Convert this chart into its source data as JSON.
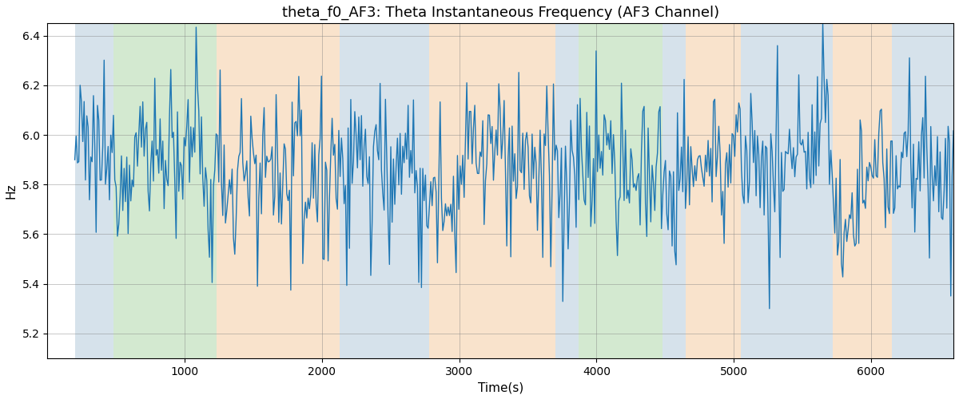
{
  "title": "theta_f0_AF3: Theta Instantaneous Frequency (AF3 Channel)",
  "xlabel": "Time(s)",
  "ylabel": "Hz",
  "xlim": [
    0,
    6600
  ],
  "ylim": [
    5.1,
    6.45
  ],
  "line_color": "#1f77b4",
  "line_width": 1.0,
  "bg_regions": [
    {
      "xmin": 200,
      "xmax": 480,
      "color": "#aec6d8",
      "alpha": 0.5
    },
    {
      "xmin": 480,
      "xmax": 1230,
      "color": "#a8d5a2",
      "alpha": 0.5
    },
    {
      "xmin": 1230,
      "xmax": 2130,
      "color": "#f5c89a",
      "alpha": 0.5
    },
    {
      "xmin": 2130,
      "xmax": 2780,
      "color": "#aec6d8",
      "alpha": 0.5
    },
    {
      "xmin": 2780,
      "xmax": 3700,
      "color": "#f5c89a",
      "alpha": 0.5
    },
    {
      "xmin": 3700,
      "xmax": 3870,
      "color": "#aec6d8",
      "alpha": 0.5
    },
    {
      "xmin": 3870,
      "xmax": 4480,
      "color": "#a8d5a2",
      "alpha": 0.5
    },
    {
      "xmin": 4480,
      "xmax": 4650,
      "color": "#aec6d8",
      "alpha": 0.5
    },
    {
      "xmin": 4650,
      "xmax": 5050,
      "color": "#f5c89a",
      "alpha": 0.5
    },
    {
      "xmin": 5050,
      "xmax": 5720,
      "color": "#aec6d8",
      "alpha": 0.5
    },
    {
      "xmin": 5720,
      "xmax": 6150,
      "color": "#f5c89a",
      "alpha": 0.5
    },
    {
      "xmin": 6150,
      "xmax": 6600,
      "color": "#aec6d8",
      "alpha": 0.5
    }
  ],
  "seed": 12345,
  "n_points": 660,
  "base_freq": 5.88,
  "title_fontsize": 13,
  "label_fontsize": 11,
  "tick_fontsize": 10,
  "xticks": [
    1000,
    2000,
    3000,
    4000,
    5000,
    6000
  ],
  "yticks": [
    5.2,
    5.4,
    5.6,
    5.8,
    6.0,
    6.2,
    6.4
  ]
}
